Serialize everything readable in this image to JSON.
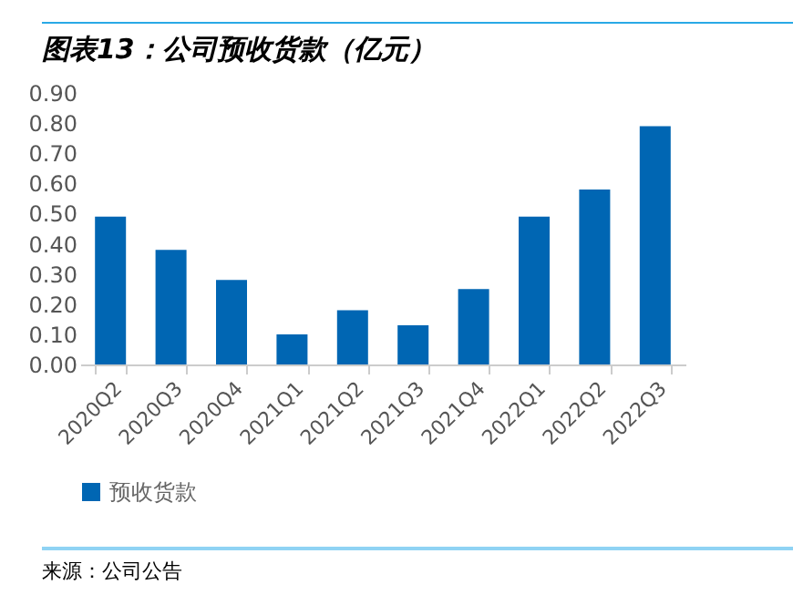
{
  "chart_data": {
    "type": "bar",
    "title": "图表13：公司预收货款（亿元）",
    "categories": [
      "2020Q2",
      "2020Q3",
      "2020Q4",
      "2021Q1",
      "2021Q2",
      "2021Q3",
      "2021Q4",
      "2022Q1",
      "2022Q2",
      "2022Q3"
    ],
    "series": [
      {
        "name": "预收货款",
        "color": "#0066b3",
        "values": [
          0.49,
          0.38,
          0.28,
          0.1,
          0.18,
          0.13,
          0.25,
          0.49,
          0.58,
          0.79
        ]
      }
    ],
    "ylim": [
      0,
      0.9
    ],
    "yticks": [
      {
        "value": 0,
        "label": "0.00"
      },
      {
        "value": 0.1,
        "label": "0.10"
      },
      {
        "value": 0.2,
        "label": "0.20"
      },
      {
        "value": 0.3,
        "label": "0.30"
      },
      {
        "value": 0.4,
        "label": "0.40"
      },
      {
        "value": 0.5,
        "label": "0.50"
      },
      {
        "value": 0.6,
        "label": "0.60"
      },
      {
        "value": 0.7,
        "label": "0.70"
      },
      {
        "value": 0.8,
        "label": "0.80"
      },
      {
        "value": 0.9,
        "label": "0.90"
      }
    ],
    "grid": false,
    "legend": "bottom",
    "annotations": [
      "来源：公司公告"
    ]
  }
}
